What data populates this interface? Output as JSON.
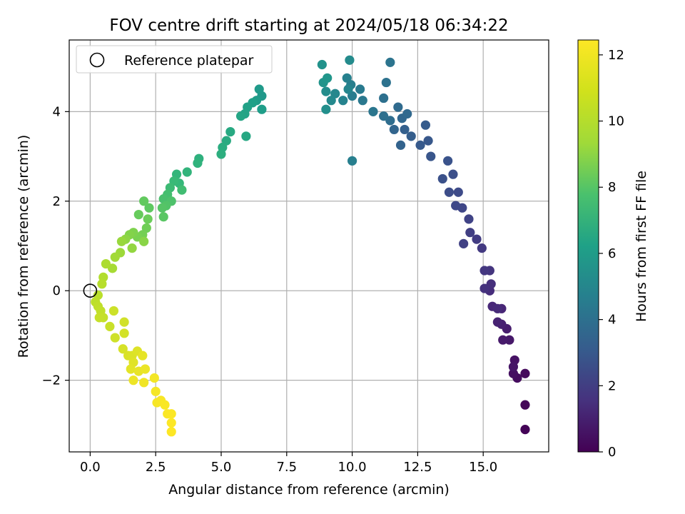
{
  "chart_data": {
    "type": "scatter",
    "title": "FOV centre drift starting at 2024/05/18 06:34:22",
    "xlabel": "Angular distance from reference (arcmin)",
    "ylabel": "Rotation from reference (arcmin)",
    "xlim": [
      -0.8,
      17.5
    ],
    "ylim": [
      -3.6,
      5.6
    ],
    "xticks": [
      0.0,
      2.5,
      5.0,
      7.5,
      10.0,
      12.5,
      15.0
    ],
    "xtick_labels": [
      "0.0",
      "2.5",
      "5.0",
      "7.5",
      "10.0",
      "12.5",
      "15.0"
    ],
    "yticks": [
      -2,
      0,
      2,
      4
    ],
    "ytick_labels": [
      "−2",
      "0",
      "2",
      "4"
    ],
    "grid": true,
    "legend": {
      "placement": "top-left",
      "entries": [
        {
          "label": "Reference platepar",
          "marker": "open-circle"
        }
      ]
    },
    "reference_point": {
      "x": 0,
      "y": 0
    },
    "colorbar": {
      "label": "Hours from first FF file",
      "colormap": "viridis",
      "range": [
        0,
        12.45
      ],
      "ticks": [
        0,
        2,
        4,
        6,
        8,
        10,
        12
      ],
      "tick_labels": [
        "0",
        "2",
        "4",
        "6",
        "8",
        "10",
        "12"
      ]
    },
    "points": [
      [
        16.6,
        -3.1,
        0.1
      ],
      [
        16.6,
        -2.55,
        0.2
      ],
      [
        16.6,
        -1.85,
        0.3
      ],
      [
        16.3,
        -1.95,
        0.4
      ],
      [
        16.15,
        -1.85,
        0.5
      ],
      [
        16.2,
        -1.55,
        0.6
      ],
      [
        16.15,
        -1.7,
        0.7
      ],
      [
        16.0,
        -1.1,
        0.8
      ],
      [
        15.75,
        -1.1,
        0.9
      ],
      [
        15.9,
        -0.85,
        1.0
      ],
      [
        15.7,
        -0.75,
        1.1
      ],
      [
        15.55,
        -0.7,
        1.2
      ],
      [
        15.7,
        -0.4,
        1.3
      ],
      [
        15.35,
        -0.35,
        1.4
      ],
      [
        15.55,
        -0.4,
        1.5
      ],
      [
        15.25,
        0.0,
        1.6
      ],
      [
        15.3,
        0.15,
        1.7
      ],
      [
        15.05,
        0.05,
        1.8
      ],
      [
        15.25,
        0.45,
        1.9
      ],
      [
        15.05,
        0.45,
        2.0
      ],
      [
        14.95,
        0.95,
        2.1
      ],
      [
        14.75,
        1.15,
        2.2
      ],
      [
        14.5,
        1.3,
        2.3
      ],
      [
        14.25,
        1.05,
        2.4
      ],
      [
        14.45,
        1.6,
        2.5
      ],
      [
        14.2,
        1.85,
        2.6
      ],
      [
        13.95,
        1.9,
        2.7
      ],
      [
        14.05,
        2.2,
        2.8
      ],
      [
        13.7,
        2.2,
        2.9
      ],
      [
        13.85,
        2.6,
        3.0
      ],
      [
        13.45,
        2.5,
        3.1
      ],
      [
        13.65,
        2.9,
        3.2
      ],
      [
        13.0,
        3.0,
        3.3
      ],
      [
        12.9,
        3.35,
        3.4
      ],
      [
        12.6,
        3.25,
        3.5
      ],
      [
        12.8,
        3.7,
        3.6
      ],
      [
        12.25,
        3.45,
        3.7
      ],
      [
        12.0,
        3.6,
        3.8
      ],
      [
        11.85,
        3.25,
        3.9
      ],
      [
        11.6,
        3.6,
        4.0
      ],
      [
        11.9,
        3.85,
        4.1
      ],
      [
        12.1,
        3.95,
        4.2
      ],
      [
        11.75,
        4.1,
        4.3
      ],
      [
        11.45,
        3.8,
        4.4
      ],
      [
        11.2,
        3.9,
        4.5
      ],
      [
        11.2,
        4.3,
        4.6
      ],
      [
        11.3,
        4.65,
        4.7
      ],
      [
        11.45,
        5.1,
        4.8
      ],
      [
        10.8,
        4.0,
        4.9
      ],
      [
        10.4,
        4.25,
        5.0
      ],
      [
        10.3,
        4.5,
        5.1
      ],
      [
        10.0,
        4.35,
        5.2
      ],
      [
        9.95,
        4.6,
        5.3
      ],
      [
        10.0,
        2.9,
        5.4
      ],
      [
        9.8,
        4.75,
        5.5
      ],
      [
        9.65,
        4.25,
        5.6
      ],
      [
        9.85,
        4.5,
        5.7
      ],
      [
        9.35,
        4.4,
        5.8
      ],
      [
        9.2,
        4.25,
        5.9
      ],
      [
        9.9,
        5.15,
        6.0
      ],
      [
        9.0,
        4.45,
        6.1
      ],
      [
        9.0,
        4.05,
        6.2
      ],
      [
        8.85,
        5.05,
        6.3
      ],
      [
        8.9,
        4.65,
        6.4
      ],
      [
        9.05,
        4.75,
        6.5
      ],
      [
        6.55,
        4.35,
        6.6
      ],
      [
        6.45,
        4.5,
        6.7
      ],
      [
        6.35,
        4.25,
        6.8
      ],
      [
        6.55,
        4.05,
        6.9
      ],
      [
        6.2,
        4.2,
        7.0
      ],
      [
        6.0,
        4.1,
        7.1
      ],
      [
        5.9,
        3.95,
        7.2
      ],
      [
        5.75,
        3.9,
        7.3
      ],
      [
        5.95,
        3.45,
        7.4
      ],
      [
        5.35,
        3.55,
        7.5
      ],
      [
        5.2,
        3.35,
        7.6
      ],
      [
        5.05,
        3.2,
        7.7
      ],
      [
        5.0,
        3.05,
        7.8
      ],
      [
        4.15,
        2.95,
        7.9
      ],
      [
        4.1,
        2.85,
        8.0
      ],
      [
        3.7,
        2.65,
        8.1
      ],
      [
        3.3,
        2.6,
        8.2
      ],
      [
        3.4,
        2.4,
        8.3
      ],
      [
        3.2,
        2.45,
        8.4
      ],
      [
        3.05,
        2.3,
        8.5
      ],
      [
        3.5,
        2.25,
        8.6
      ],
      [
        2.95,
        2.15,
        8.7
      ],
      [
        2.8,
        2.05,
        8.8
      ],
      [
        3.1,
        2.0,
        8.9
      ],
      [
        2.9,
        1.9,
        9.0
      ],
      [
        2.75,
        1.85,
        9.1
      ],
      [
        2.8,
        1.65,
        9.2
      ],
      [
        2.25,
        1.85,
        9.3
      ],
      [
        2.05,
        2.0,
        9.4
      ],
      [
        1.85,
        1.7,
        9.5
      ],
      [
        2.2,
        1.6,
        9.6
      ],
      [
        2.15,
        1.4,
        9.7
      ],
      [
        2.0,
        1.25,
        9.8
      ],
      [
        1.8,
        1.2,
        9.9
      ],
      [
        1.65,
        1.3,
        10.0
      ],
      [
        1.5,
        1.25,
        10.1
      ],
      [
        2.05,
        1.1,
        10.2
      ],
      [
        1.35,
        1.15,
        10.3
      ],
      [
        1.6,
        0.95,
        10.4
      ],
      [
        1.2,
        1.1,
        10.5
      ],
      [
        1.15,
        0.85,
        10.6
      ],
      [
        0.95,
        0.75,
        10.7
      ],
      [
        0.85,
        0.5,
        10.8
      ],
      [
        0.6,
        0.6,
        10.9
      ],
      [
        0.5,
        0.3,
        11.0
      ],
      [
        0.45,
        0.15,
        11.1
      ],
      [
        0.3,
        -0.1,
        11.15
      ],
      [
        0.2,
        -0.25,
        11.2
      ],
      [
        0.3,
        -0.35,
        11.25
      ],
      [
        0.4,
        -0.45,
        11.3
      ],
      [
        0.5,
        -0.6,
        11.35
      ],
      [
        0.35,
        -0.6,
        11.4
      ],
      [
        0.75,
        -0.8,
        11.45
      ],
      [
        0.9,
        -0.45,
        11.5
      ],
      [
        0.95,
        -1.05,
        11.55
      ],
      [
        1.3,
        -0.7,
        11.6
      ],
      [
        1.3,
        -0.95,
        11.65
      ],
      [
        1.25,
        -1.3,
        11.7
      ],
      [
        1.45,
        -1.45,
        11.75
      ],
      [
        1.6,
        -1.45,
        11.8
      ],
      [
        1.8,
        -1.35,
        11.85
      ],
      [
        1.65,
        -1.6,
        11.9
      ],
      [
        1.55,
        -1.75,
        11.95
      ],
      [
        2.0,
        -1.45,
        12.0
      ],
      [
        1.85,
        -1.8,
        12.05
      ],
      [
        2.1,
        -1.75,
        12.1
      ],
      [
        1.65,
        -2.0,
        12.15
      ],
      [
        2.05,
        -2.05,
        12.2
      ],
      [
        2.45,
        -1.95,
        12.25
      ],
      [
        2.5,
        -2.25,
        12.3
      ],
      [
        2.55,
        -2.5,
        12.32
      ],
      [
        2.7,
        -2.45,
        12.35
      ],
      [
        2.85,
        -2.55,
        12.38
      ],
      [
        2.95,
        -2.75,
        12.4
      ],
      [
        3.1,
        -2.75,
        12.42
      ],
      [
        3.1,
        -2.95,
        12.44
      ],
      [
        3.1,
        -3.15,
        12.45
      ]
    ]
  }
}
